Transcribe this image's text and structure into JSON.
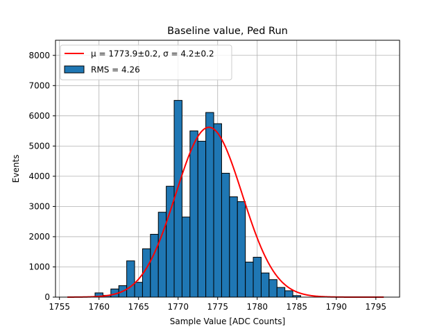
{
  "chart_data": {
    "type": "bar",
    "title": "Baseline value, Ped Run",
    "xlabel": "Sample Value [ADC Counts]",
    "ylabel": "Events",
    "xlim": [
      1754.5,
      1798
    ],
    "ylim": [
      0,
      8500
    ],
    "xticks": [
      1755,
      1760,
      1765,
      1770,
      1775,
      1780,
      1785,
      1790,
      1795
    ],
    "yticks": [
      0,
      1000,
      2000,
      3000,
      4000,
      5000,
      6000,
      7000,
      8000
    ],
    "grid": true,
    "legend": {
      "placement": "top-left",
      "entries": [
        {
          "label": "μ = 1773.9±0.2, σ = 4.2±0.2",
          "kind": "line",
          "color": "#ff0000"
        },
        {
          "label": "RMS = 4.26",
          "kind": "patch",
          "color": "#1f77b4"
        }
      ]
    },
    "histogram": {
      "name": "RMS = 4.26",
      "color": "#1f77b4",
      "edge_color": "#000000",
      "bin_start": 1760,
      "bin_width": 1,
      "counts": [
        140,
        60,
        270,
        380,
        1200,
        490,
        1600,
        2080,
        2810,
        3670,
        6510,
        2650,
        5500,
        5160,
        6110,
        5740,
        4100,
        3320,
        3160,
        1160,
        1320,
        800,
        580,
        320,
        210,
        50
      ]
    },
    "fit": {
      "name": "μ = 1773.9±0.2, σ = 4.2±0.2",
      "color": "#ff0000",
      "mu": 1773.9,
      "sigma": 4.2,
      "amplitude": 5620,
      "x_range": [
        1756,
        1796
      ]
    }
  }
}
